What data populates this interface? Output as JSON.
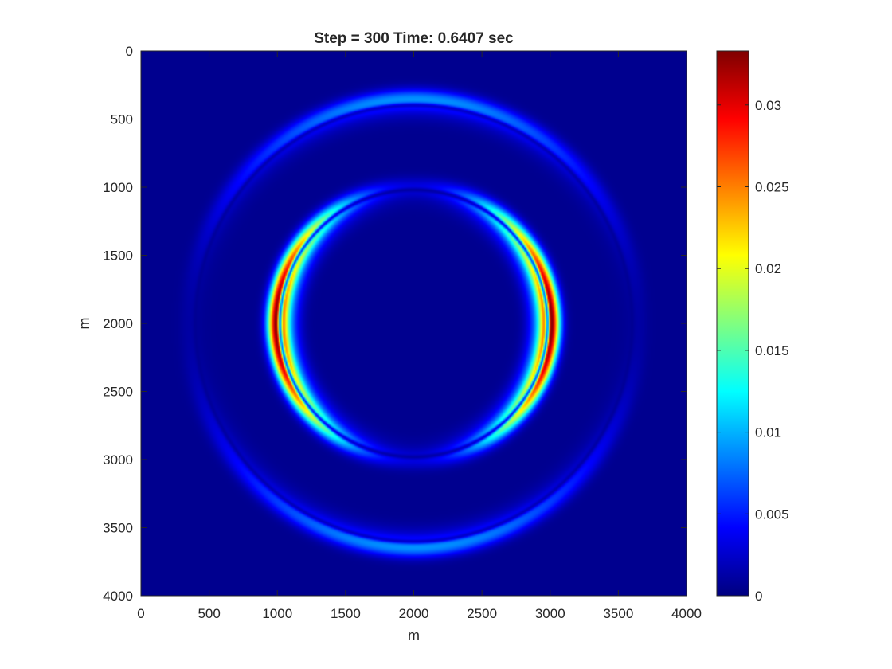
{
  "chart_data": {
    "type": "heatmap",
    "title": "Step = 300 Time: 0.6407 sec",
    "xlabel": "m",
    "ylabel": "m",
    "xlim": [
      0,
      4000
    ],
    "ylim": [
      0,
      4000
    ],
    "y_axis_reversed": true,
    "x_ticks": [
      "0",
      "500",
      "1000",
      "1500",
      "2000",
      "2500",
      "3000",
      "3500",
      "4000"
    ],
    "y_ticks": [
      "0",
      "500",
      "1000",
      "1500",
      "2000",
      "2500",
      "3000",
      "3500",
      "4000"
    ],
    "colormap": "jet",
    "colorbar": {
      "range": [
        0,
        0.0333
      ],
      "ticks": [
        0,
        0.005,
        0.01,
        0.015,
        0.02,
        0.025,
        0.03
      ],
      "tick_labels": [
        "0",
        "0.005",
        "0.01",
        "0.015",
        "0.02",
        "0.025",
        "0.03"
      ]
    },
    "background_value": 0.0005,
    "field_center": [
      2000,
      2000
    ],
    "wavefronts": [
      {
        "name": "inner ring",
        "radius": 1000,
        "width": 110,
        "peak": 0.033,
        "strongest": "left/right",
        "gaps": "top and bottom",
        "dark_line_radius": 980
      },
      {
        "name": "outer ring",
        "radius": 1650,
        "width": 110,
        "peak": 0.008,
        "strongest": "top/bottom",
        "gaps": "left and right",
        "dark_line_radius": 1600
      }
    ]
  }
}
